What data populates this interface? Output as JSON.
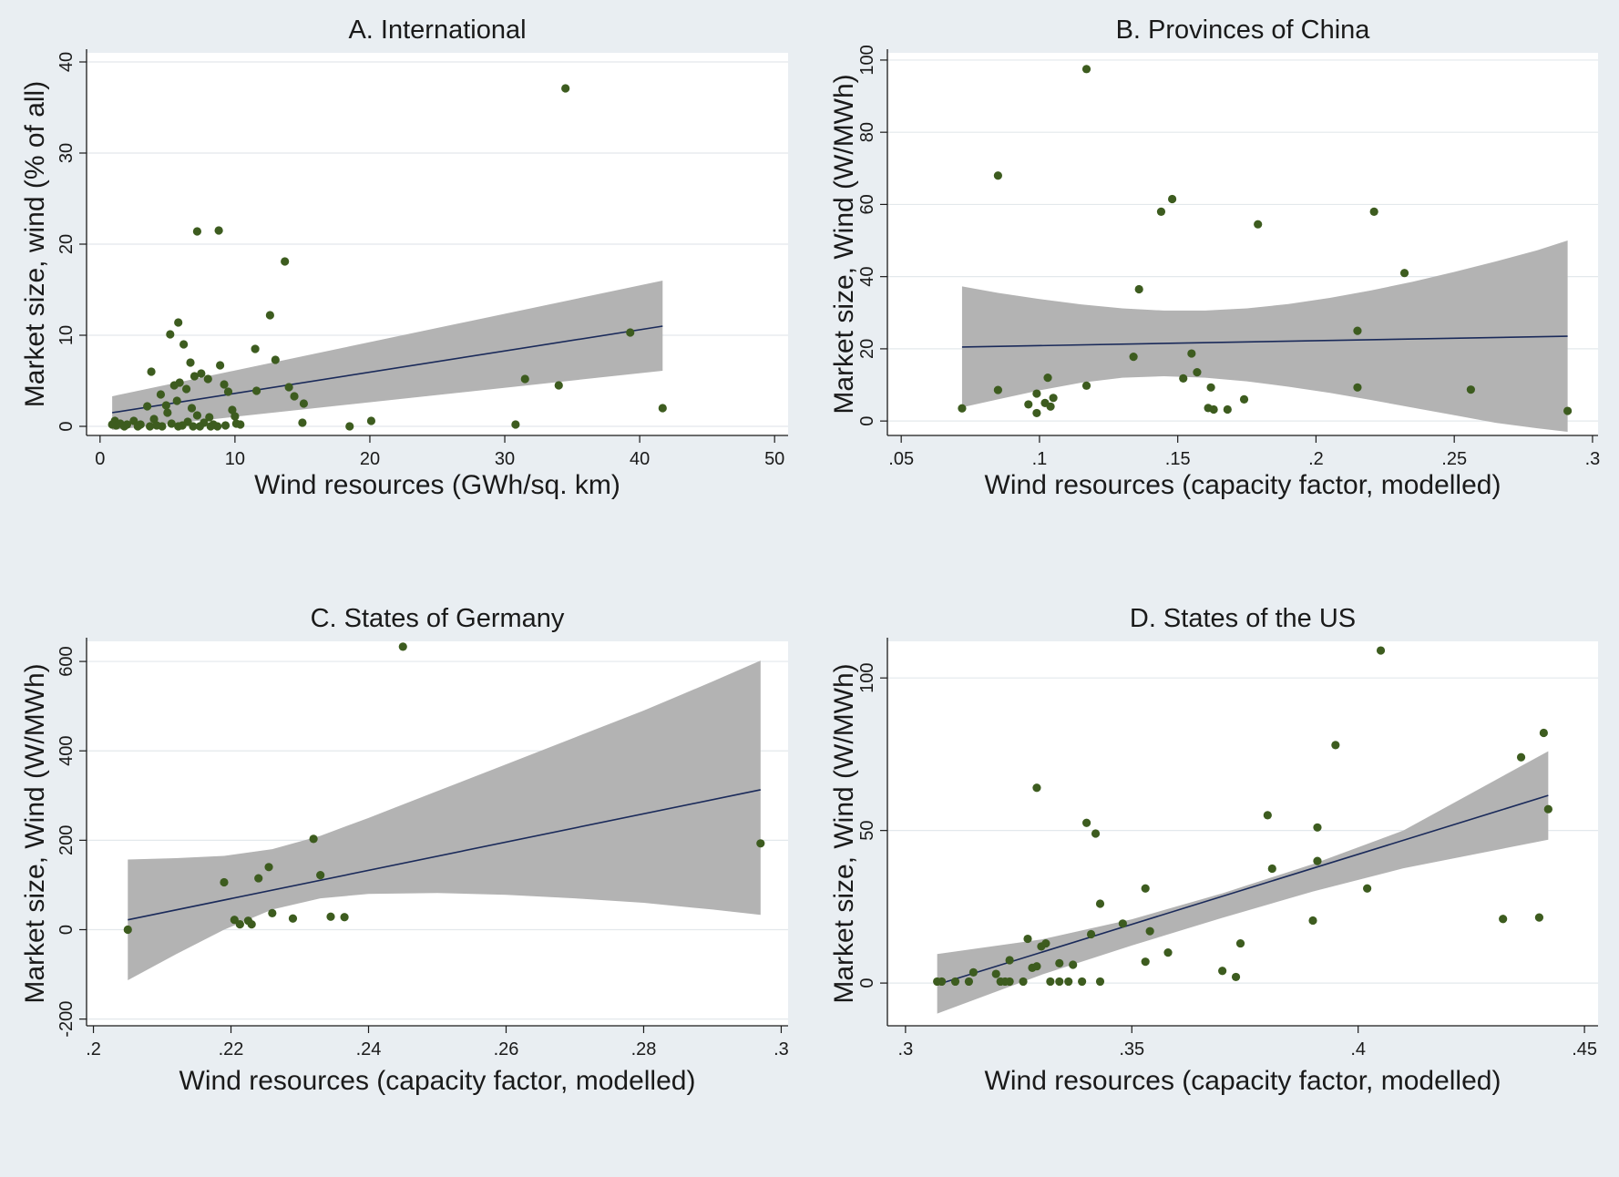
{
  "figure": {
    "background": "#e9eef2",
    "plot_background": "#ffffff",
    "marker_color": "#3d5c1f",
    "fit_color": "#1a2a5a",
    "band_color": "#b3b3b3",
    "grid_color": "#e3e8ec"
  },
  "chart_data": [
    {
      "type": "scatter",
      "title": "A. International",
      "xlabel": "Wind resources (GWh/sq. km)",
      "ylabel": "Market size, wind (% of all)",
      "xlim": [
        -1,
        51
      ],
      "ylim": [
        -1,
        41
      ],
      "xticks": [
        0,
        10,
        20,
        30,
        40,
        50
      ],
      "xtick_labels": [
        "0",
        "10",
        "20",
        "30",
        "40",
        "50"
      ],
      "yticks": [
        0,
        10,
        20,
        30,
        40
      ],
      "ytick_labels": [
        "0",
        "10",
        "20",
        "30",
        "40"
      ],
      "points": [
        [
          34.5,
          37.1
        ],
        [
          7.2,
          21.4
        ],
        [
          8.8,
          21.5
        ],
        [
          13.7,
          18.1
        ],
        [
          5.8,
          11.4
        ],
        [
          12.6,
          12.2
        ],
        [
          5.2,
          10.1
        ],
        [
          39.3,
          10.3
        ],
        [
          6.2,
          9.0
        ],
        [
          11.5,
          8.5
        ],
        [
          13.0,
          7.3
        ],
        [
          6.7,
          7.0
        ],
        [
          8.9,
          6.7
        ],
        [
          3.8,
          6.0
        ],
        [
          7.5,
          5.8
        ],
        [
          31.5,
          5.2
        ],
        [
          8.0,
          5.2
        ],
        [
          5.9,
          4.8
        ],
        [
          7.0,
          5.5
        ],
        [
          14.0,
          4.3
        ],
        [
          9.2,
          4.6
        ],
        [
          6.4,
          4.1
        ],
        [
          5.5,
          4.5
        ],
        [
          34.0,
          4.5
        ],
        [
          4.5,
          3.5
        ],
        [
          9.5,
          3.8
        ],
        [
          11.6,
          3.9
        ],
        [
          14.4,
          3.3
        ],
        [
          15.1,
          2.5
        ],
        [
          5.7,
          2.8
        ],
        [
          4.9,
          2.3
        ],
        [
          6.8,
          2.0
        ],
        [
          3.5,
          2.2
        ],
        [
          9.8,
          1.8
        ],
        [
          41.7,
          2.0
        ],
        [
          5.0,
          1.5
        ],
        [
          7.2,
          1.2
        ],
        [
          8.1,
          1.0
        ],
        [
          10.0,
          1.1
        ],
        [
          4.0,
          0.8
        ],
        [
          2.5,
          0.6
        ],
        [
          6.5,
          0.5
        ],
        [
          1.1,
          0.6
        ],
        [
          1.5,
          0.3
        ],
        [
          2.0,
          0.2
        ],
        [
          15.0,
          0.4
        ],
        [
          20.1,
          0.6
        ],
        [
          30.8,
          0.2
        ],
        [
          18.5,
          0.0
        ],
        [
          3.0,
          0.2
        ],
        [
          4.2,
          0.1
        ],
        [
          5.3,
          0.3
        ],
        [
          6.1,
          0.1
        ],
        [
          6.9,
          0.0
        ],
        [
          7.7,
          0.4
        ],
        [
          8.4,
          0.2
        ],
        [
          8.7,
          0.0
        ],
        [
          9.3,
          0.1
        ],
        [
          10.1,
          0.3
        ],
        [
          10.4,
          0.2
        ],
        [
          1.2,
          0.1
        ],
        [
          1.8,
          0.0
        ],
        [
          2.8,
          0.0
        ],
        [
          3.7,
          0.0
        ],
        [
          4.6,
          0.0
        ],
        [
          5.8,
          0.0
        ],
        [
          7.4,
          0.0
        ],
        [
          8.2,
          0.0
        ],
        [
          0.9,
          0.2
        ]
      ],
      "fit": {
        "x": [
          0.9,
          41.7
        ],
        "y": [
          1.5,
          11.0
        ]
      },
      "ci_band": {
        "x": [
          0.9,
          41.7
        ],
        "lower": [
          -0.4,
          6.1
        ],
        "upper": [
          3.3,
          16.0
        ]
      }
    },
    {
      "type": "scatter",
      "title": "B. Provinces of China",
      "xlabel": "Wind resources (capacity factor, modelled)",
      "ylabel": "Market size, Wind (W/MWh)",
      "xlim": [
        0.045,
        0.302
      ],
      "ylim": [
        -4,
        102
      ],
      "xticks": [
        0.05,
        0.1,
        0.15,
        0.2,
        0.25,
        0.3
      ],
      "xtick_labels": [
        ".05",
        ".1",
        ".15",
        ".2",
        ".25",
        ".3"
      ],
      "yticks": [
        0,
        20,
        40,
        60,
        80,
        100
      ],
      "ytick_labels": [
        "0",
        "20",
        "40",
        "60",
        "80",
        "100"
      ],
      "points": [
        [
          0.117,
          97.5
        ],
        [
          0.085,
          68.0
        ],
        [
          0.148,
          61.5
        ],
        [
          0.144,
          58.0
        ],
        [
          0.221,
          58.0
        ],
        [
          0.179,
          54.5
        ],
        [
          0.232,
          41.0
        ],
        [
          0.136,
          36.5
        ],
        [
          0.215,
          25.0
        ],
        [
          0.155,
          18.7
        ],
        [
          0.134,
          17.8
        ],
        [
          0.157,
          13.5
        ],
        [
          0.103,
          12.0
        ],
        [
          0.152,
          11.8
        ],
        [
          0.117,
          9.8
        ],
        [
          0.085,
          8.6
        ],
        [
          0.162,
          9.3
        ],
        [
          0.215,
          9.3
        ],
        [
          0.256,
          8.7
        ],
        [
          0.099,
          7.6
        ],
        [
          0.105,
          6.4
        ],
        [
          0.174,
          6.0
        ],
        [
          0.096,
          4.6
        ],
        [
          0.102,
          5.0
        ],
        [
          0.104,
          4.0
        ],
        [
          0.072,
          3.5
        ],
        [
          0.161,
          3.6
        ],
        [
          0.163,
          3.2
        ],
        [
          0.168,
          3.2
        ],
        [
          0.099,
          2.2
        ],
        [
          0.291,
          2.8
        ]
      ],
      "fit": {
        "x": [
          0.072,
          0.291
        ],
        "y": [
          20.5,
          23.5
        ]
      },
      "ci_band": {
        "x": [
          0.072,
          0.085,
          0.1,
          0.115,
          0.13,
          0.145,
          0.16,
          0.175,
          0.19,
          0.205,
          0.22,
          0.235,
          0.25,
          0.265,
          0.28,
          0.291
        ],
        "lower": [
          3.8,
          6.0,
          8.5,
          10.6,
          12.0,
          12.4,
          12.0,
          11.0,
          9.5,
          7.8,
          5.8,
          3.7,
          1.6,
          -0.5,
          -2.0,
          -3.0
        ],
        "upper": [
          37.3,
          35.5,
          33.8,
          32.3,
          31.2,
          30.6,
          30.6,
          31.2,
          32.4,
          34.1,
          36.2,
          38.6,
          41.3,
          44.2,
          47.3,
          50.0
        ]
      }
    },
    {
      "type": "scatter",
      "title": "C. States of Germany",
      "xlabel": "Wind resources (capacity factor, modelled)",
      "ylabel": "Market size, Wind (W/MWh)",
      "xlim": [
        0.199,
        0.301
      ],
      "ylim": [
        -215,
        645
      ],
      "xticks": [
        0.2,
        0.22,
        0.24,
        0.26,
        0.28,
        0.3
      ],
      "xtick_labels": [
        ".2",
        ".22",
        ".24",
        ".26",
        ".28",
        ".3"
      ],
      "yticks": [
        -200,
        0,
        200,
        400,
        600
      ],
      "ytick_labels": [
        "-200",
        "0",
        "200",
        "400",
        "600"
      ],
      "points": [
        [
          0.245,
          633
        ],
        [
          0.297,
          193
        ],
        [
          0.232,
          203
        ],
        [
          0.2255,
          140
        ],
        [
          0.233,
          122
        ],
        [
          0.224,
          115
        ],
        [
          0.219,
          106
        ],
        [
          0.226,
          37
        ],
        [
          0.2345,
          29
        ],
        [
          0.2365,
          28
        ],
        [
          0.229,
          25
        ],
        [
          0.2205,
          22
        ],
        [
          0.2225,
          20
        ],
        [
          0.2213,
          12
        ],
        [
          0.223,
          12
        ],
        [
          0.205,
          0
        ]
      ],
      "fit": {
        "x": [
          0.205,
          0.297
        ],
        "y": [
          22,
          313
        ]
      },
      "ci_band": {
        "x": [
          0.205,
          0.212,
          0.219,
          0.226,
          0.233,
          0.24,
          0.25,
          0.26,
          0.27,
          0.28,
          0.29,
          0.297
        ],
        "lower": [
          -113,
          -55,
          0,
          45,
          70,
          80,
          82,
          78,
          70,
          60,
          45,
          33
        ],
        "upper": [
          157,
          160,
          165,
          180,
          210,
          250,
          310,
          370,
          430,
          490,
          555,
          602
        ]
      }
    },
    {
      "type": "scatter",
      "title": "D. States of the US",
      "xlabel": "Wind resources (capacity factor, modelled)",
      "ylabel": "Market size, Wind (W/MWh)",
      "xlim": [
        0.296,
        0.453
      ],
      "ylim": [
        -14,
        112
      ],
      "xticks": [
        0.3,
        0.35,
        0.4,
        0.45
      ],
      "xtick_labels": [
        ".3",
        ".35",
        ".4",
        ".45"
      ],
      "yticks": [
        0,
        50,
        100
      ],
      "ytick_labels": [
        "0",
        "50",
        "100"
      ],
      "points": [
        [
          0.405,
          109
        ],
        [
          0.441,
          82
        ],
        [
          0.395,
          78
        ],
        [
          0.436,
          74
        ],
        [
          0.329,
          64
        ],
        [
          0.442,
          57
        ],
        [
          0.38,
          55
        ],
        [
          0.34,
          52.5
        ],
        [
          0.391,
          51
        ],
        [
          0.342,
          49
        ],
        [
          0.391,
          40
        ],
        [
          0.381,
          37.5
        ],
        [
          0.353,
          31
        ],
        [
          0.402,
          31
        ],
        [
          0.343,
          26
        ],
        [
          0.348,
          19.5
        ],
        [
          0.354,
          17
        ],
        [
          0.39,
          20.5
        ],
        [
          0.432,
          21
        ],
        [
          0.44,
          21.5
        ],
        [
          0.341,
          16
        ],
        [
          0.327,
          14.5
        ],
        [
          0.33,
          12
        ],
        [
          0.374,
          13
        ],
        [
          0.358,
          10
        ],
        [
          0.331,
          13
        ],
        [
          0.323,
          7.5
        ],
        [
          0.353,
          7
        ],
        [
          0.334,
          6.5
        ],
        [
          0.337,
          6
        ],
        [
          0.328,
          5
        ],
        [
          0.329,
          5.5
        ],
        [
          0.315,
          3.5
        ],
        [
          0.32,
          3
        ],
        [
          0.37,
          4
        ],
        [
          0.373,
          2
        ],
        [
          0.307,
          0.5
        ],
        [
          0.308,
          0.5
        ],
        [
          0.311,
          0.5
        ],
        [
          0.314,
          0.5
        ],
        [
          0.321,
          0.5
        ],
        [
          0.323,
          0.5
        ],
        [
          0.326,
          0.5
        ],
        [
          0.332,
          0.5
        ],
        [
          0.334,
          0.5
        ],
        [
          0.336,
          0.5
        ],
        [
          0.339,
          0.5
        ],
        [
          0.343,
          0.5
        ],
        [
          0.322,
          0.5
        ]
      ],
      "fit": {
        "x": [
          0.307,
          0.442
        ],
        "y": [
          -0.5,
          61.5
        ]
      },
      "ci_band": {
        "x": [
          0.307,
          0.33,
          0.35,
          0.37,
          0.39,
          0.41,
          0.442
        ],
        "lower": [
          -10,
          2.7,
          12.3,
          21.4,
          30.0,
          37.6,
          47.0
        ],
        "upper": [
          9.5,
          14.3,
          20.9,
          29.4,
          39.0,
          50.0,
          76.0
        ]
      }
    }
  ]
}
